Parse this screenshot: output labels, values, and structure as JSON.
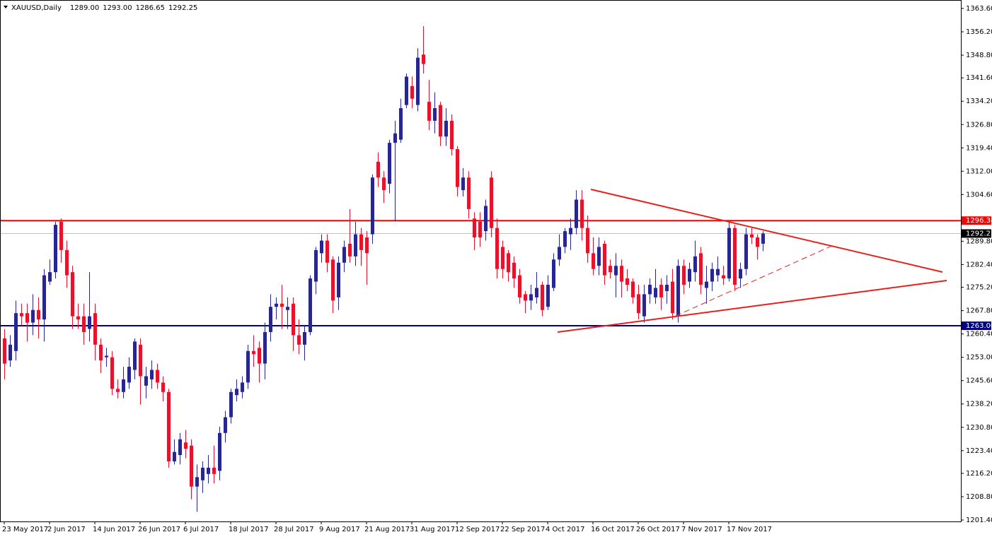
{
  "chart_data": {
    "type": "candlestick",
    "title": "XAUUSD,Daily",
    "ohlc_readout": [
      "1289.00",
      "1293.00",
      "1286.65",
      "1292.25"
    ],
    "up_color": "#27278f",
    "down_color": "#e3142b",
    "ylim": [
      1200.95,
      1366.29
    ],
    "yticks": [
      {
        "value": 1363.6,
        "label": "1363.60"
      },
      {
        "value": 1356.2,
        "label": "1356.20"
      },
      {
        "value": 1348.8,
        "label": "1348.80"
      },
      {
        "value": 1341.6,
        "label": "1341.60"
      },
      {
        "value": 1334.2,
        "label": "1334.20"
      },
      {
        "value": 1326.8,
        "label": "1326.80"
      },
      {
        "value": 1319.4,
        "label": "1319.40"
      },
      {
        "value": 1312,
        "label": "1312.00"
      },
      {
        "value": 1304.6,
        "label": "1304.60"
      },
      {
        "value": 1289.8,
        "label": "1289.80"
      },
      {
        "value": 1282.4,
        "label": "1282.40"
      },
      {
        "value": 1275.2,
        "label": "1275.20"
      },
      {
        "value": 1267.8,
        "label": "1267.80"
      },
      {
        "value": 1260.4,
        "label": "1260.40"
      },
      {
        "value": 1253,
        "label": "1253.00"
      },
      {
        "value": 1245.6,
        "label": "1245.60"
      },
      {
        "value": 1238.2,
        "label": "1238.20"
      },
      {
        "value": 1230.8,
        "label": "1230.80"
      },
      {
        "value": 1223.4,
        "label": "1223.40"
      },
      {
        "value": 1216.2,
        "label": "1216.20"
      },
      {
        "value": 1208.8,
        "label": "1208.80"
      },
      {
        "value": 1201.4,
        "label": "1201.40"
      }
    ],
    "hlines": [
      {
        "value": 1296.34,
        "label": "1296.34",
        "color": "#ff0000",
        "label_color": "#ff0000"
      },
      {
        "value": 1263,
        "label": "1263.00",
        "color": "#000080",
        "label_color": "#000080"
      },
      {
        "value": 1292.25,
        "label": "1292.25",
        "color": "#c0c0c0",
        "label_color": "#000000"
      }
    ],
    "categories": [
      "23 May 2017",
      null,
      null,
      null,
      null,
      null,
      null,
      null,
      "2 Jun 2017",
      null,
      null,
      null,
      null,
      null,
      null,
      null,
      "14 Jun 2017",
      null,
      null,
      null,
      null,
      null,
      null,
      null,
      "26 Jun 2017",
      null,
      null,
      null,
      null,
      null,
      null,
      null,
      "6 Jul 2017",
      null,
      null,
      null,
      null,
      null,
      null,
      null,
      "18 Jul 2017",
      null,
      null,
      null,
      null,
      null,
      null,
      null,
      "28 Jul 2017",
      null,
      null,
      null,
      null,
      null,
      null,
      null,
      "9 Aug 2017",
      null,
      null,
      null,
      null,
      null,
      null,
      null,
      "21 Aug 2017",
      null,
      null,
      null,
      null,
      null,
      null,
      null,
      "31 Aug 2017",
      null,
      null,
      null,
      null,
      null,
      null,
      null,
      "12 Sep 2017",
      null,
      null,
      null,
      null,
      null,
      null,
      null,
      "22 Sep 2017",
      null,
      null,
      null,
      null,
      null,
      null,
      null,
      "4 Oct 2017",
      null,
      null,
      null,
      null,
      null,
      null,
      null,
      "16 Oct 2017",
      null,
      null,
      null,
      null,
      null,
      null,
      null,
      "26 Oct 2017",
      null,
      null,
      null,
      null,
      null,
      null,
      null,
      "7 Nov 2017",
      null,
      null,
      null,
      null,
      null,
      null,
      null,
      "17 Nov 2017",
      null,
      null,
      null,
      null,
      null,
      null
    ],
    "open": [
      1259,
      1252,
      1255,
      1267,
      1267,
      1264,
      1268,
      1265,
      1277,
      1280,
      1296,
      1287,
      1280,
      1266,
      1266,
      1262,
      1267,
      1257,
      1253,
      1253,
      1243,
      1242,
      1245,
      1249,
      1257,
      1244,
      1246,
      1249,
      1245,
      1242,
      1220,
      1222,
      1226,
      1225,
      1212,
      1214,
      1216,
      1218,
      1217,
      1229,
      1234,
      1241,
      1242,
      1245,
      1255,
      1256,
      1251,
      1261,
      1269,
      1270,
      1268,
      1270,
      1260,
      1257,
      1261,
      1277,
      1286,
      1290,
      1284,
      1272,
      1283,
      1289,
      1285,
      1292,
      1291,
      1292,
      1315,
      1310,
      1308,
      1321,
      1322,
      1333,
      1339,
      1333,
      1349,
      1334,
      1328,
      1333,
      1323,
      1328,
      1319,
      1306,
      1310,
      1297,
      1296,
      1293,
      1310,
      1294,
      1288,
      1286,
      1283,
      1279,
      1273,
      1271,
      1272,
      1276,
      1269,
      1275,
      1284,
      1288,
      1292,
      1294,
      1303,
      1294,
      1286,
      1282,
      1289,
      1282,
      1279,
      1282,
      1278,
      1277,
      1273,
      1266,
      1273,
      1272,
      1276,
      1274,
      1277,
      1266,
      1282,
      1277,
      1280,
      1286,
      1275,
      1277,
      1279,
      1279,
      1278,
      1294,
      1278,
      1281,
      1292,
      1291,
      1289
    ],
    "high": [
      1262,
      1260,
      1271,
      1270,
      1270,
      1273,
      1272,
      1281,
      1284,
      1296,
      1297,
      1290,
      1282,
      1270,
      1270,
      1280,
      1270,
      1259,
      1256,
      1255,
      1246,
      1250,
      1253,
      1259,
      1259,
      1250,
      1252,
      1251,
      1247,
      1243,
      1227,
      1229,
      1230,
      1227,
      1219,
      1220,
      1222,
      1225,
      1231,
      1236,
      1243,
      1246,
      1247,
      1257,
      1260,
      1258,
      1264,
      1273,
      1272,
      1276,
      1272,
      1272,
      1265,
      1263,
      1279,
      1288,
      1292,
      1292,
      1285,
      1285,
      1290,
      1300,
      1296,
      1294,
      1293,
      1311,
      1318,
      1312,
      1322,
      1328,
      1335,
      1343,
      1342,
      1351,
      1358,
      1341,
      1337,
      1334,
      1332,
      1330,
      1320,
      1313,
      1312,
      1299,
      1299,
      1303,
      1312,
      1297,
      1290,
      1287,
      1285,
      1281,
      1274,
      1276,
      1280,
      1277,
      1279,
      1286,
      1292,
      1294,
      1297,
      1306,
      1306,
      1298,
      1291,
      1291,
      1290,
      1284,
      1286,
      1284,
      1281,
      1278,
      1276,
      1276,
      1278,
      1281,
      1278,
      1279,
      1281,
      1284,
      1284,
      1283,
      1290,
      1288,
      1282,
      1283,
      1285,
      1282,
      1296,
      1295,
      1283,
      1294,
      1294,
      1292,
      1293
    ],
    "low": [
      1246,
      1250,
      1252,
      1263,
      1258,
      1260,
      1259,
      1258,
      1276,
      1278,
      1283,
      1275,
      1262,
      1262,
      1257,
      1258,
      1252,
      1248,
      1250,
      1241,
      1240,
      1240,
      1243,
      1246,
      1238,
      1240,
      1243,
      1243,
      1239,
      1218,
      1219,
      1219,
      1221,
      1208,
      1204,
      1210,
      1213,
      1213,
      1214,
      1226,
      1232,
      1239,
      1240,
      1243,
      1250,
      1245,
      1246,
      1258,
      1265,
      1262,
      1262,
      1255,
      1254,
      1252,
      1260,
      1273,
      1283,
      1280,
      1267,
      1268,
      1280,
      1283,
      1282,
      1282,
      1276,
      1289,
      1307,
      1302,
      1305,
      1296,
      1321,
      1332,
      1332,
      1331,
      1343,
      1325,
      1324,
      1320,
      1320,
      1317,
      1304,
      1304,
      1297,
      1287,
      1288,
      1290,
      1291,
      1278,
      1278,
      1277,
      1275,
      1270,
      1267,
      1268,
      1270,
      1266,
      1268,
      1274,
      1282,
      1286,
      1287,
      1292,
      1290,
      1283,
      1279,
      1279,
      1276,
      1278,
      1272,
      1272,
      1274,
      1270,
      1265,
      1264,
      1270,
      1270,
      1268,
      1270,
      1265,
      1264,
      1273,
      1275,
      1277,
      1273,
      1270,
      1274,
      1277,
      1276,
      1277,
      1274,
      1275,
      1279,
      1289,
      1284,
      1286.65
    ],
    "close": [
      1251,
      1257,
      1267,
      1266,
      1264,
      1268,
      1265,
      1279,
      1280,
      1295,
      1287,
      1279,
      1266,
      1265,
      1261,
      1266,
      1257,
      1252,
      1253.5,
      1243,
      1242,
      1246,
      1250,
      1258,
      1247,
      1247,
      1249,
      1245,
      1242,
      1220,
      1223,
      1227,
      1224,
      1212,
      1215,
      1218,
      1218,
      1216,
      1229,
      1234,
      1242,
      1243,
      1245,
      1255,
      1254,
      1251,
      1261,
      1269,
      1270,
      1269,
      1269,
      1260,
      1257,
      1261,
      1278,
      1287,
      1290,
      1283,
      1271,
      1283,
      1288,
      1285,
      1292,
      1287,
      1286,
      1310,
      1310,
      1306,
      1321,
      1324,
      1332,
      1342,
      1335,
      1348,
      1346,
      1328,
      1332,
      1323,
      1328,
      1319,
      1307,
      1310,
      1300,
      1291,
      1291,
      1301,
      1294,
      1281,
      1281,
      1280,
      1278,
      1272,
      1271,
      1273,
      1275,
      1268,
      1276,
      1284,
      1288,
      1293,
      1294,
      1303,
      1294,
      1286,
      1281,
      1288,
      1279,
      1280,
      1282,
      1277,
      1276,
      1272,
      1267,
      1273,
      1276,
      1275,
      1272,
      1276,
      1267,
      1282,
      1276,
      1281,
      1285,
      1276,
      1277,
      1281,
      1281,
      1278,
      1294,
      1276,
      1281,
      1292,
      1291,
      1288,
      1292.25
    ]
  }
}
